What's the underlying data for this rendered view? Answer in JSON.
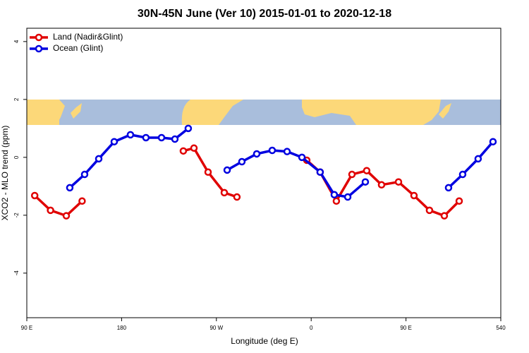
{
  "chart_data": {
    "type": "line",
    "title": "30N-45N June (Ver 10)   2015-01-01 to 2020-12-18",
    "x_label": "Longitude (deg E)",
    "y_label": "XCO2 - MLO trend (ppm)",
    "xlim": [
      90,
      540
    ],
    "xticks": [
      {
        "value": 90,
        "label": "90 E"
      },
      180,
      {
        "value": 270,
        "label": "90 W"
      },
      {
        "value": 360,
        "label": "0"
      },
      {
        "value": 450,
        "label": "90 E"
      },
      540
    ],
    "ylim": [
      -5.54,
      4.46
    ],
    "yticks": [
      -4,
      -2,
      0,
      2,
      4
    ],
    "legend": "top-left",
    "series": [
      {
        "name": "Land (Nadir&Glint)",
        "color": "#e00000",
        "x": [
          97.5,
          112.5,
          127.5,
          142.5,
          190,
          238.6,
          248.7,
          262.1,
          277.5,
          289.5,
          322,
          355.8,
          368.5,
          383.9,
          398.7,
          412.7,
          426.8,
          442.9,
          457.6,
          472.3,
          486.4,
          500.5
        ],
        "values": [
          -1.32,
          -1.83,
          -2.02,
          -1.51,
          null,
          0.22,
          0.32,
          -0.51,
          -1.22,
          -1.37,
          null,
          -0.1,
          -0.51,
          -1.51,
          -0.59,
          -0.46,
          -0.95,
          -0.85,
          -1.32,
          -1.83,
          -2.02,
          -1.51
        ]
      },
      {
        "name": "Ocean (Glint)",
        "color": "#0000e0",
        "x": [
          130.8,
          144.9,
          158.3,
          173,
          188.4,
          203.1,
          217.9,
          230.6,
          243.3,
          262,
          280.2,
          294.2,
          308.3,
          323,
          337.1,
          351.2,
          368.5,
          381.9,
          394.7,
          411.4,
          450,
          490.4,
          503.8,
          518.5,
          532.6
        ],
        "values": [
          -1.05,
          -0.59,
          -0.05,
          0.54,
          0.78,
          0.68,
          0.68,
          0.63,
          1.0,
          null,
          -0.44,
          -0.15,
          0.12,
          0.24,
          0.2,
          0,
          -0.51,
          -1.29,
          -1.37,
          -0.85,
          null,
          -1.05,
          -0.59,
          -0.05,
          0.54
        ]
      }
    ]
  }
}
